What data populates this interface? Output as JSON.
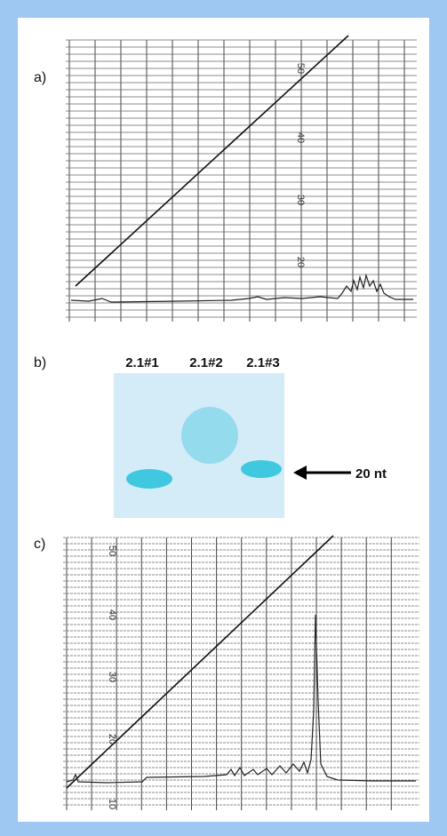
{
  "panels": [
    {
      "label": "a)",
      "scale_labels": [
        "50",
        "40",
        "30",
        "20"
      ]
    },
    {
      "label": "b)",
      "lanes": [
        "2.1#1",
        "2.1#2",
        "2.1#3"
      ],
      "marker": "20 nt"
    },
    {
      "label": "c)",
      "scale_labels": [
        "50",
        "40",
        "30",
        "20",
        "10"
      ]
    }
  ]
}
